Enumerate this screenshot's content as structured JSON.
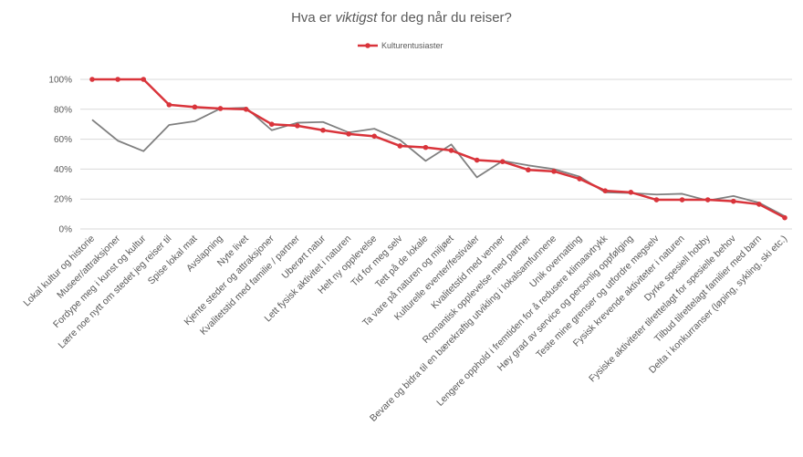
{
  "chart_data": {
    "type": "line",
    "title": {
      "before": "Hva er ",
      "emphasis": "viktigst",
      "after": " for deg når du reiser?"
    },
    "y_ticks": [
      "0%",
      "20%",
      "40%",
      "60%",
      "80%",
      "100%"
    ],
    "ylim": [
      0,
      100
    ],
    "grid": true,
    "legend_position": "top-center",
    "categories": [
      "Lokal kultur og historie",
      "Museer/attraksjoner",
      "Fordype meg i kunst og kultur",
      "Lære noe nytt om stedet jeg reiser til",
      "Spise lokal mat",
      "Avslapning",
      "Nyte livet",
      "Kjente steder og attraksjoner",
      "Kvalitetstid med familie / partner",
      "Uberørt natur",
      "Lett fysisk aktivitet i naturen",
      "Helt ny opplevelse",
      "Tid for meg selv",
      "Tett på de lokale",
      "Ta vare på naturen og miljøet",
      "Kulturelle eventer/festivaler",
      "Kvalitetstid med venner",
      "Romantisk opplevelse med partner",
      "Bevare og bidra til en bærekraftig utvikling i lokalsamfunnene",
      "Unik overnatting",
      "Lengere opphold i fremtiden for å redusere klimaavtrykk",
      "Høy grad av service og personlig oppfølging",
      "Teste mine grenser og utfordre megselv",
      "Fysisk krevende aktiviteter i naturen",
      "Dyrke spesiell hobby",
      "Fysiske aktiviteter tilrettelagt for spesielle behov",
      "Tilbud tilrettelagt familier med barn",
      "Delta i konkurranser (løping, sykling, ski etc.)"
    ],
    "series": [
      {
        "name": "Kulturentusiaster",
        "color": "#d9343b",
        "markers": true,
        "values": [
          100,
          100,
          100,
          83,
          81.5,
          80.5,
          80,
          70,
          69,
          66,
          63.5,
          62,
          55.5,
          54.5,
          52.5,
          46,
          45,
          39.5,
          38.5,
          33.5,
          25.5,
          24.5,
          19.5,
          19.5,
          19.5,
          18.5,
          16.5,
          7.5
        ]
      },
      {
        "name": "",
        "color": "#808080",
        "markers": false,
        "values": [
          73,
          59,
          52,
          69.5,
          72,
          80.5,
          81,
          66,
          71,
          71.5,
          64.5,
          67,
          59.5,
          45.5,
          56.5,
          34.5,
          45.5,
          42.5,
          40,
          35,
          24.5,
          24,
          23,
          23.5,
          19,
          22,
          17.5,
          8.5
        ]
      }
    ]
  }
}
